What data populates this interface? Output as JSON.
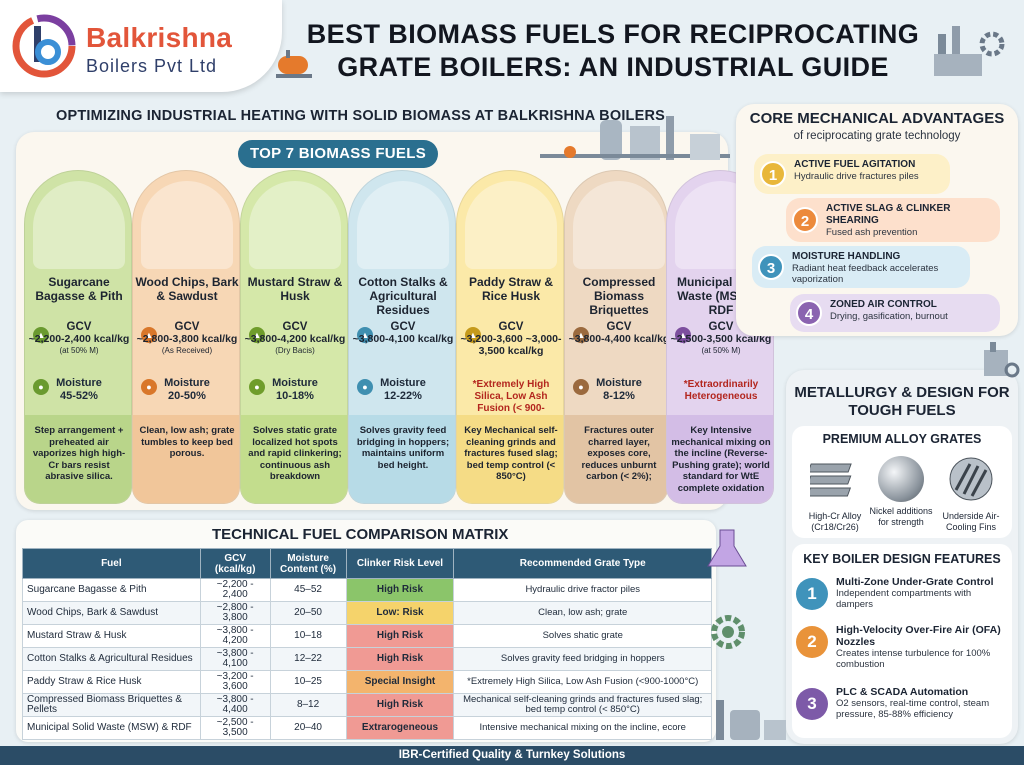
{
  "brand": {
    "name": "Balkrishna",
    "sub": "Boilers Pvt Ltd"
  },
  "title_line1": "BEST BIOMASS FUELS FOR RECIPROCATING",
  "title_line2": "GRATE BOILERS: AN INDUSTRIAL GUIDE",
  "subtitle": "OPTIMIZING INDUSTRIAL HEATING WITH SOLID BIOMASS AT BALKRISHNA BOILERS",
  "top7_label": "TOP 7 BIOMASS FUELS",
  "gcv_label": "GCV",
  "moisture_label": "Moisture",
  "cards": [
    {
      "name": "Sugarcane Bagasse & Pith",
      "gcv": "~2,200-2,400 kcal/kg",
      "gcv_note": "(at 50% M)",
      "moisture": "45-52%",
      "note": "",
      "desc": "Step arrangement + preheated air vaporizes high high-Cr bars resist abrasive silica.",
      "color": "#cfe3a6",
      "desc_color": "#b9d58a",
      "accent": "#6a9a2f"
    },
    {
      "name": "Wood Chips, Bark & Sawdust",
      "gcv": "~2,800-3,800 kcal/kg",
      "gcv_note": "(As Received)",
      "moisture": "20-50%",
      "note": "",
      "desc": "Clean, low ash; grate tumbles to keep bed porous.",
      "color": "#f7d7b5",
      "desc_color": "#f1c69a",
      "accent": "#d9772a"
    },
    {
      "name": "Mustard Straw & Husk",
      "gcv": "~3,800-4,200 kcal/kg",
      "gcv_note": "(Dry Bacis)",
      "moisture": "10-18%",
      "note": "",
      "desc": "Solves static grate localized hot spots and rapid clinkering; continuous ash breakdown",
      "color": "#d5e8a9",
      "desc_color": "#c3dd8d",
      "accent": "#6f9d2b"
    },
    {
      "name": "Cotton Stalks & Agricultural Residues",
      "gcv": "~3,800-4,100 kcal/kg",
      "gcv_note": "",
      "moisture": "12-22%",
      "note": "",
      "desc": "Solves gravity feed bridging in hoppers; maintains uniform bed height.",
      "color": "#cfe6ee",
      "desc_color": "#b7dbe7",
      "accent": "#3f8fb0"
    },
    {
      "name": "Paddy Straw & Rice Husk",
      "gcv": "~3,200-3,600 ~3,000-3,500 kcal/kg",
      "gcv_note": "",
      "moisture": "",
      "note": "*Extremely High Silica, Low Ash Fusion (< 900-1000°C)",
      "desc": "Key Mechanical self-cleaning grinds and fractures fused slag; bed temp control (< 850°C)",
      "color": "#fbe9a8",
      "desc_color": "#f5dc86",
      "accent": "#c59a1c"
    },
    {
      "name": "Compressed Biomass Briquettes",
      "gcv": "~3,800-4,400 kcal/kg",
      "gcv_note": "",
      "moisture": "8-12%",
      "note": "",
      "desc": "Fractures outer charred layer, exposes core, reduces unburnt carbon (< 2%);",
      "color": "#eed9c2",
      "desc_color": "#e2c4a4",
      "accent": "#9b6a3e"
    },
    {
      "name": "Municipal Solid Waste (MSW) & RDF",
      "gcv": "~2,500-3,500 kcal/kg",
      "gcv_note": "(at 50% M)",
      "moisture": "",
      "note": "*Extraordinarily Heterogeneous",
      "desc": "Key Intensive mechanical mixing on the incline (Reverse-Pushing grate); world standard for WtE complete oxidation",
      "color": "#e3d3ee",
      "desc_color": "#d3bde6",
      "accent": "#7d4f9e"
    }
  ],
  "matrix": {
    "title": "TECHNICAL FUEL COMPARISON MATRIX",
    "headers": [
      "Fuel",
      "GCV (kcal/kg)",
      "Moisture Content (%)",
      "Clinker Risk Level",
      "Recommended Grate Type"
    ],
    "rows": [
      [
        "Sugarcane Bagasse & Pith",
        "~2,200 - 2,400",
        "45–52",
        "High Risk",
        "Hydraulic drive fractor piles"
      ],
      [
        "Wood Chips, Bark & Sawdust",
        "~2,800 - 3,800",
        "20–50",
        "Low: Risk",
        "Clean, low ash; grate"
      ],
      [
        "Mustard Straw & Husk",
        "~3,800 - 4,200",
        "10–18",
        "High Risk",
        "Solves shatic grate"
      ],
      [
        "Cotton Stalks & Agricultural Residues",
        "~3,800 - 4,100",
        "12–22",
        "High Risk",
        "Solves gravity feed bridging in hoppers"
      ],
      [
        "Paddy Straw & Rice Husk",
        "~3,200 - 3,600",
        "10–25",
        "Special Insight",
        "*Extremely High Silica, Low Ash Fusion (<900-1000°C)"
      ],
      [
        "Compressed Biomass Briquettes & Pellets",
        "~3,800 - 4,400",
        "8–12",
        "High Risk",
        "Mechanical self-cleaning grinds and fractures fused slag; bed temp control (< 850°C)"
      ],
      [
        "Municipal Solid Waste (MSW) & RDF",
        "~2,500 - 3,500",
        "20–40",
        "Extrarogeneous",
        "Intensive mechanical mixing on the incline, ecore"
      ]
    ],
    "risk_colors": [
      "#8bc56a",
      "#f5d36b",
      "#f09a94",
      "#f09a94",
      "#f3b46d",
      "#f09a94",
      "#f09a94"
    ]
  },
  "core": {
    "title": "CORE MECHANICAL ADVANTAGES",
    "sub": "of reciprocating grate technology",
    "steps": [
      {
        "n": "1",
        "title": "ACTIVE FUEL AGITATION",
        "text": "Hydraulic drive fractures piles",
        "bg": "#fdf0c8",
        "nc": "#e8b73a"
      },
      {
        "n": "2",
        "title": "ACTIVE SLAG & CLINKER SHEARING",
        "text": "Fused ash prevention",
        "bg": "#fde0cc",
        "nc": "#ec8a3c"
      },
      {
        "n": "3",
        "title": "MOISTURE HANDLING",
        "text": "Radiant heat feedback accelerates vaporization",
        "bg": "#d9ecf5",
        "nc": "#3f93bb"
      },
      {
        "n": "4",
        "title": "ZONED AIR CONTROL",
        "text": "Drying, gasification, burnout",
        "bg": "#e7dcf1",
        "nc": "#8a63b0"
      }
    ]
  },
  "metal": {
    "title": "METALLURGY & DESIGN FOR TOUGH FUELS",
    "alloy_title": "PREMIUM ALLOY GRATES",
    "alloys": [
      "High-Cr Alloy (Cr18/Cr26)",
      "Nickel additions for strength",
      "Underside Air-Cooling Fins"
    ],
    "kbd_title": "KEY BOILER DESIGN FEATURES",
    "features": [
      {
        "n": "1",
        "title": "Multi-Zone Under-Grate Control",
        "text": "Independent compartments with dampers",
        "nc": "#3f93bb"
      },
      {
        "n": "2",
        "title": "High-Velocity Over-Fire Air (OFA) Nozzles",
        "text": "Creates intense turbulence for 100% combustion",
        "nc": "#e9933a"
      },
      {
        "n": "3",
        "title": "PLC & SCADA Automation",
        "text": "O2 sensors, real-time control, steam pressure, 85-88% efficiency",
        "nc": "#7d5aa8"
      }
    ]
  },
  "footer": "IBR-Certified Quality & Turnkey Solutions"
}
